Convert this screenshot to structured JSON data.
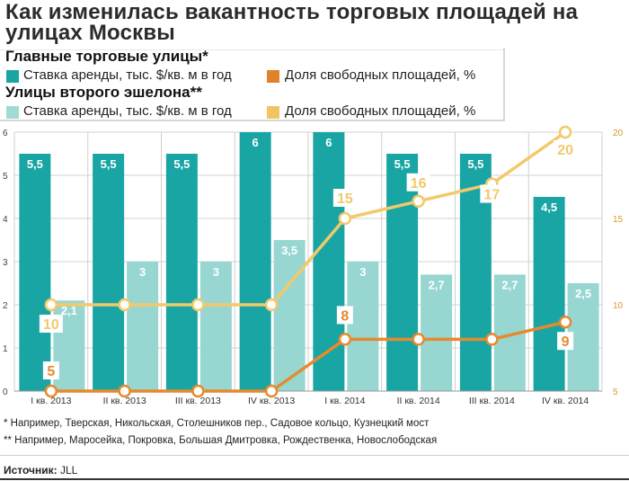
{
  "title": "Как изменилась вакантность торговых площадей на улицах Москвы",
  "section_main": "Главные торговые улицы*",
  "section_second": "Улицы второго эшелона**",
  "legend": {
    "main_rent": "Ставка аренды, тыс. $/кв. м в год",
    "main_vacancy": "Доля свободных площадей, %",
    "second_rent": "Ставка аренды, тыс. $/кв. м в год",
    "second_vacancy": "Доля свободных площадей, %"
  },
  "colors": {
    "main_rent": "#1aa5a5",
    "second_rent": "#98d6d2",
    "main_vacancy": "#e68a2e",
    "second_vacancy": "#f2c96b",
    "main_rent_legend": "#1aa5a5",
    "second_rent_legend": "#a2dad6",
    "main_vacancy_legend": "#e0822a",
    "second_vacancy_legend": "#f0c560"
  },
  "footnotes": [
    "* Например, Тверская, Никольская, Столешников пер., Садовое кольцо, Кузнецкий мост",
    "** Например, Маросейка, Покровка, Большая Дмитровка, Рождественка, Новослободская"
  ],
  "source_label": "Источник:",
  "source_value": "JLL",
  "chart_data": {
    "type": "bar",
    "categories": [
      "I кв. 2013",
      "II кв. 2013",
      "III кв. 2013",
      "IV кв. 2013",
      "I кв. 2014",
      "II кв. 2014",
      "III кв. 2014",
      "IV кв. 2014"
    ],
    "y_left": {
      "ticks": [
        0,
        1,
        2,
        3,
        4,
        5,
        6
      ],
      "ylim": [
        0,
        6
      ]
    },
    "y_right": {
      "ticks": [
        5,
        10,
        15,
        20
      ],
      "ylim": [
        5,
        20
      ]
    },
    "series": [
      {
        "key": "main_rent",
        "kind": "bar",
        "axis": "left",
        "values": [
          5.5,
          5.5,
          5.5,
          6,
          6,
          5.5,
          5.5,
          4.5
        ],
        "labels": [
          "5,5",
          "5,5",
          "5,5",
          "6",
          "6",
          "5,5",
          "5,5",
          "4,5"
        ]
      },
      {
        "key": "second_rent",
        "kind": "bar",
        "axis": "left",
        "values": [
          2.1,
          3,
          3,
          3.5,
          3,
          2.7,
          2.7,
          2.5
        ],
        "labels": [
          "2,1",
          "3",
          "3",
          "3,5",
          "3",
          "2,7",
          "2,7",
          "2,5"
        ]
      },
      {
        "key": "main_vacancy",
        "kind": "line",
        "axis": "right",
        "values": [
          5,
          5,
          5,
          5,
          8,
          8,
          8,
          9
        ],
        "labels": [
          "5",
          "",
          "",
          "",
          "8",
          "",
          "",
          "9"
        ]
      },
      {
        "key": "second_vacancy",
        "kind": "line",
        "axis": "right",
        "values": [
          10,
          10,
          10,
          10,
          15,
          16,
          17,
          20
        ],
        "labels": [
          "10",
          "",
          "",
          "",
          "15",
          "16",
          "17",
          "20"
        ]
      }
    ]
  }
}
